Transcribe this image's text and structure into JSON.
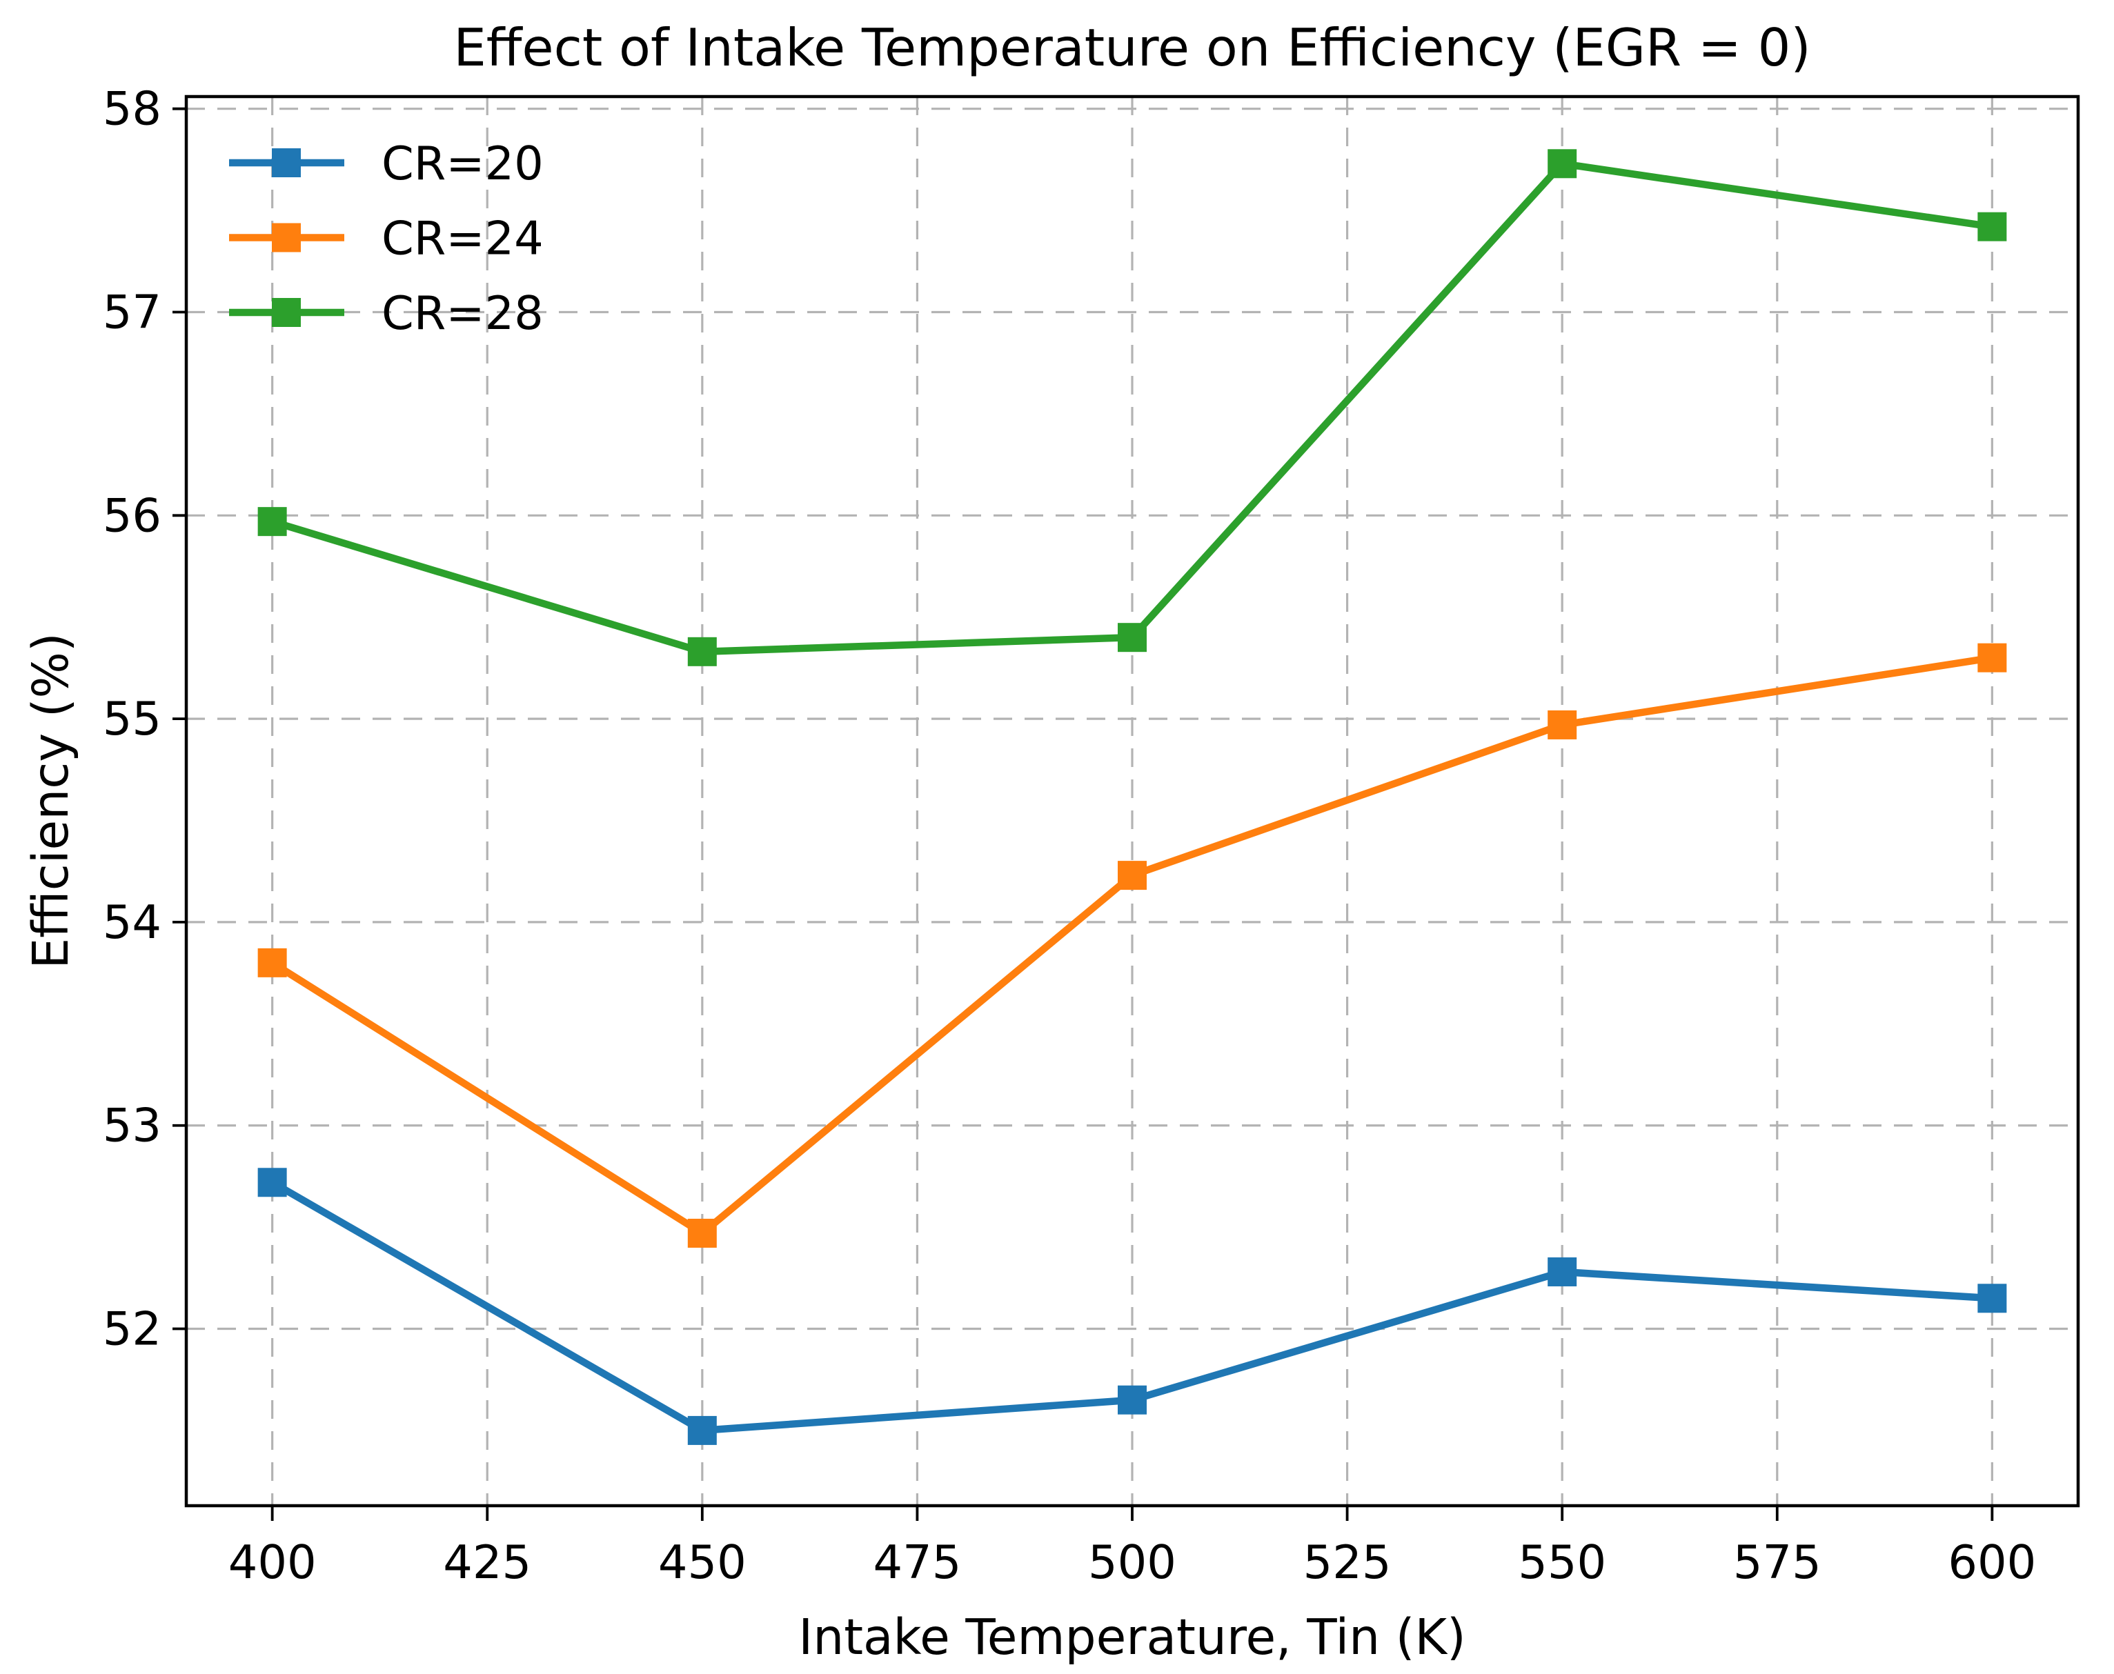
{
  "chart_data": {
    "type": "line",
    "title": "Effect of Intake Temperature on Efficiency (EGR = 0)",
    "xlabel": "Intake Temperature, Tin (K)",
    "ylabel": "Efficiency (%)",
    "x": [
      400,
      450,
      500,
      550,
      600
    ],
    "series": [
      {
        "name": "CR=20",
        "color": "#1f77b4",
        "values": [
          52.72,
          51.5,
          51.65,
          52.28,
          52.15
        ]
      },
      {
        "name": "CR=24",
        "color": "#ff7f0e",
        "values": [
          53.8,
          52.47,
          54.23,
          54.97,
          55.3
        ]
      },
      {
        "name": "CR=28",
        "color": "#2ca02c",
        "values": [
          55.97,
          55.33,
          55.4,
          57.73,
          57.42
        ]
      }
    ],
    "xticks": [
      400,
      425,
      450,
      475,
      500,
      525,
      550,
      575,
      600
    ],
    "yticks": [
      52,
      53,
      54,
      55,
      56,
      57,
      58
    ],
    "xlim": [
      390,
      610
    ],
    "ylim": [
      51.13,
      58.06
    ],
    "grid": {
      "visible": true,
      "style": "dashed",
      "color": "#b3b3b3"
    },
    "legend": {
      "position": "upper-left",
      "frame": false,
      "marker": "square"
    },
    "marker": "square",
    "marker_size": 42,
    "line_width": 10.5
  }
}
